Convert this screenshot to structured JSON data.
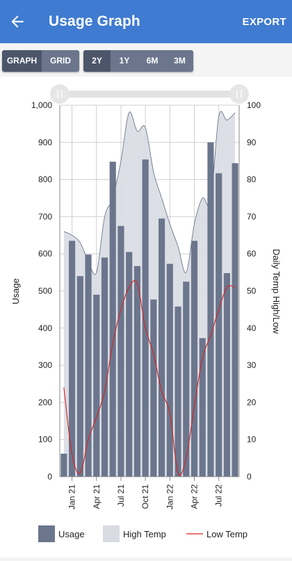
{
  "appbar": {
    "title": "Usage Graph",
    "export_label": "EXPORT",
    "back_icon": "arrow-left-icon"
  },
  "view_toggle": {
    "options": [
      "GRAPH",
      "GRID"
    ],
    "selected": "GRAPH"
  },
  "range_toggle": {
    "options": [
      "2Y",
      "1Y",
      "6M",
      "3M"
    ],
    "selected": "2Y"
  },
  "colors": {
    "appbar": "#3f7bd0",
    "usage": "#6b768d",
    "high_temp_fill": "#d8dbe2",
    "low_temp_line": "#d92020"
  },
  "chart_data": {
    "type": "bar",
    "xlabels": [
      "Jan 21",
      "Apr 21",
      "Jul 21",
      "Oct 21",
      "Jan 22",
      "Apr 22",
      "Jul 22"
    ],
    "ylabel_left": "Usage",
    "ylabel_right": "Daily Temp High/Low",
    "ylim_left": [
      0,
      1000
    ],
    "ylim_right": [
      0,
      100
    ],
    "yticks_left": [
      "0",
      "100",
      "200",
      "300",
      "400",
      "500",
      "600",
      "700",
      "800",
      "900",
      "1,000"
    ],
    "yticks_right": [
      "0",
      "10",
      "20",
      "30",
      "40",
      "50",
      "60",
      "70",
      "80",
      "90",
      "100"
    ],
    "grid": true,
    "legend_position": "bottom",
    "series": [
      {
        "name": "Usage",
        "kind": "bar",
        "axis": "left",
        "values": [
          62,
          635,
          540,
          598,
          490,
          590,
          848,
          675,
          605,
          567,
          854,
          477,
          695,
          573,
          458,
          525,
          635,
          373,
          900,
          817,
          548,
          844
        ]
      },
      {
        "name": "High Temp",
        "kind": "area",
        "axis": "right",
        "values": [
          66,
          65,
          63,
          58,
          55,
          70,
          75,
          85,
          98,
          93,
          94,
          82,
          75,
          68,
          62,
          55,
          68,
          75,
          74,
          97,
          96,
          98
        ]
      },
      {
        "name": "Low Temp",
        "kind": "line",
        "axis": "right",
        "values": [
          24,
          6,
          1,
          10,
          16,
          23,
          36,
          45,
          51,
          52,
          40,
          33,
          23,
          17,
          1,
          5,
          19,
          32,
          38,
          45,
          51,
          51
        ]
      }
    ]
  }
}
